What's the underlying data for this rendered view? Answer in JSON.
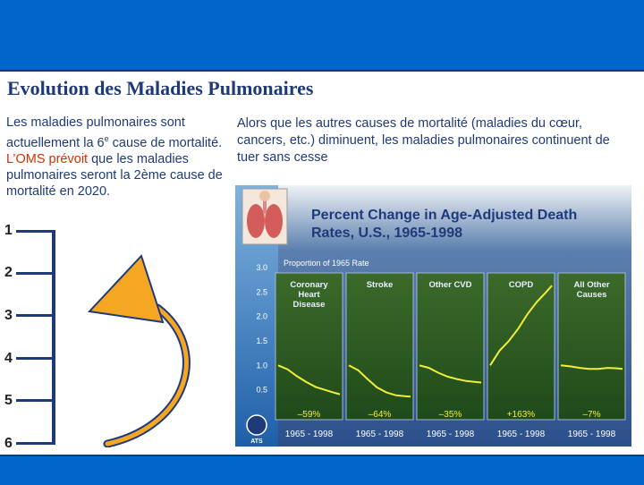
{
  "slide": {
    "title": "Evolution des Maladies Pulmonaires",
    "left_text": {
      "part1": "Les maladies pulmonaires sont actuellement la 6",
      "sup": "e",
      "part2": " cause de mortalité. ",
      "highlight": "L’OMS prévoit",
      "part3": " que les maladies pulmonaires seront la 2ème cause de mortalité en 2020."
    },
    "right_text": "Alors que les autres causes de mortalité (maladies du cœur, cancers, etc.) diminuent, les maladies pulmonaires continuent de tuer sans cesse",
    "ranks": [
      "1",
      "2",
      "3",
      "4",
      "5",
      "6"
    ],
    "colors": {
      "bar": "#0066cc",
      "title": "#1f3a7a",
      "highlight": "#cc3300",
      "arrow": "#f5a623"
    }
  },
  "chart_data": {
    "type": "line",
    "title": "Percent Change in Age-Adjusted Death Rates, U.S., 1965-1998",
    "ylabel": "Proportion of 1965 Rate",
    "ylim": [
      0,
      3.0
    ],
    "yticks": [
      "3.0",
      "2.5",
      "2.0",
      "1.5",
      "1.0",
      "0.5"
    ],
    "logo_text": "ATS",
    "panels": [
      {
        "name": "Coronary Heart Disease",
        "x_range": "1965 - 1998",
        "change": "–59%",
        "x": [
          1965,
          1970,
          1975,
          1980,
          1985,
          1990,
          1995,
          1998
        ],
        "values": [
          1.0,
          0.92,
          0.78,
          0.66,
          0.56,
          0.5,
          0.44,
          0.41
        ]
      },
      {
        "name": "Stroke",
        "x_range": "1965 - 1998",
        "change": "–64%",
        "x": [
          1965,
          1970,
          1975,
          1980,
          1985,
          1990,
          1995,
          1998
        ],
        "values": [
          1.0,
          0.9,
          0.72,
          0.55,
          0.45,
          0.39,
          0.37,
          0.36
        ]
      },
      {
        "name": "Other CVD",
        "x_range": "1965 - 1998",
        "change": "–35%",
        "x": [
          1965,
          1970,
          1975,
          1980,
          1985,
          1990,
          1995,
          1998
        ],
        "values": [
          1.0,
          0.95,
          0.85,
          0.77,
          0.72,
          0.68,
          0.66,
          0.65
        ]
      },
      {
        "name": "COPD",
        "x_range": "1965 - 1998",
        "change": "+163%",
        "x": [
          1965,
          1970,
          1975,
          1980,
          1985,
          1990,
          1995,
          1998
        ],
        "values": [
          1.0,
          1.3,
          1.5,
          1.75,
          2.05,
          2.3,
          2.5,
          2.63
        ]
      },
      {
        "name": "All Other Causes",
        "x_range": "1965 - 1998",
        "change": "–7%",
        "x": [
          1965,
          1970,
          1975,
          1980,
          1985,
          1990,
          1995,
          1998
        ],
        "values": [
          1.0,
          0.98,
          0.95,
          0.93,
          0.93,
          0.95,
          0.94,
          0.93
        ]
      }
    ]
  }
}
